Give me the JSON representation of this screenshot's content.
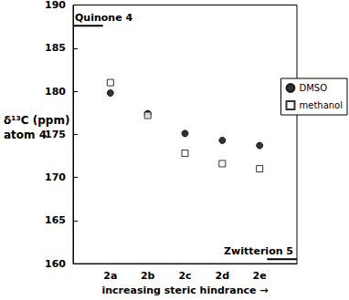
{
  "chart_data": {
    "type": "scatter",
    "x_label": "increasing steric hindrance →",
    "y_label": [
      "δ¹³C (ppm)",
      "atom 4'"
    ],
    "categories": [
      null,
      "2a",
      "2b",
      "2c",
      "2d",
      "2e",
      null
    ],
    "series": [
      {
        "name": "DMSO",
        "color": "#000000",
        "marker": "circle",
        "values": [
          null,
          179.8,
          177.4,
          175.1,
          174.3,
          173.7,
          null
        ]
      },
      {
        "name": "methanol",
        "color": "#000000",
        "marker": "square-open",
        "values": [
          null,
          181.0,
          177.2,
          172.8,
          171.6,
          171.0,
          null
        ]
      }
    ],
    "ylim": [
      160,
      190
    ],
    "yticks": [
      160,
      165,
      170,
      175,
      180,
      185,
      190
    ],
    "annotations": [
      {
        "text": "Quinone 4",
        "y": 187.6
      },
      {
        "text": "Zwitterion 5",
        "y": 160.5
      }
    ],
    "legend": "right",
    "grid": false
  }
}
